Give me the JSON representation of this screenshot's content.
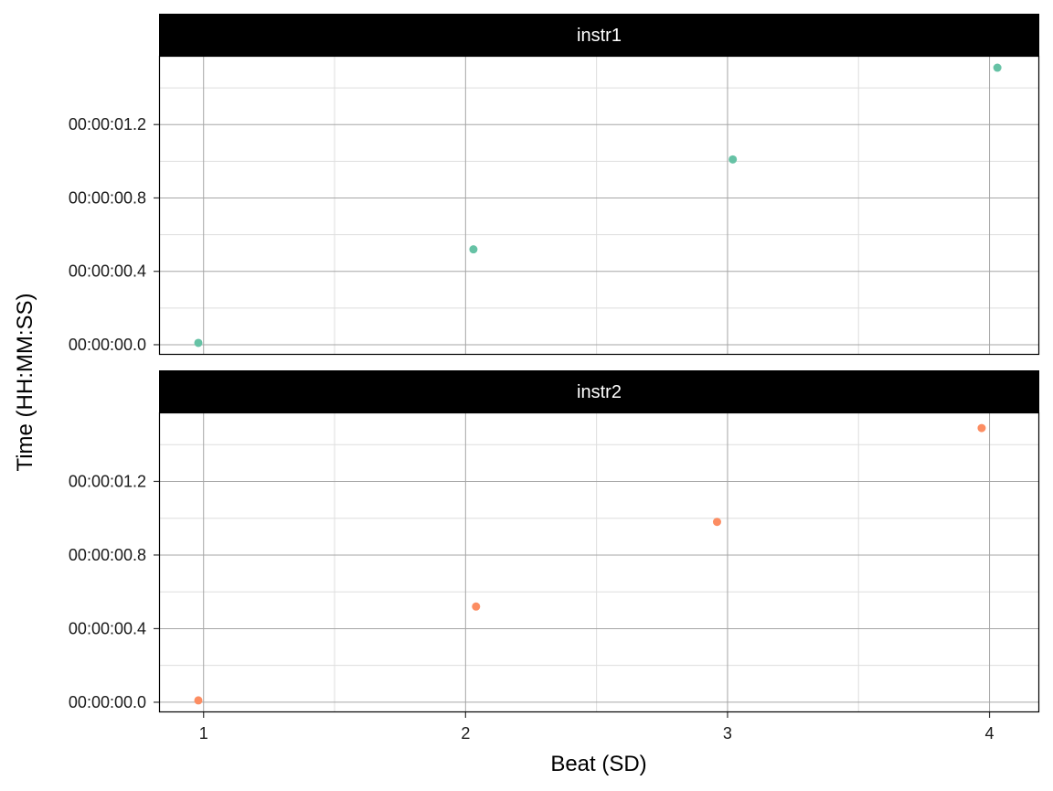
{
  "chart_data": {
    "type": "scatter",
    "xlabel": "Beat (SD)",
    "ylabel": "Time (HH:MM:SS)",
    "xlim": [
      0.83,
      4.19
    ],
    "ylim": [
      -0.055,
      1.575
    ],
    "x_ticks": [
      1,
      2,
      3,
      4
    ],
    "x_tick_labels": [
      "1",
      "2",
      "3",
      "4"
    ],
    "y_ticks": [
      0.0,
      0.4,
      0.8,
      1.2
    ],
    "y_tick_labels": [
      "00:00:00.0",
      "00:00:00.4",
      "00:00:00.8",
      "00:00:01.2"
    ],
    "y_minor_ticks": [
      0.2,
      0.6,
      1.0,
      1.4
    ],
    "x_minor_ticks": [
      1.5,
      2.5,
      3.5
    ],
    "grid": true,
    "legend": "none",
    "colors": {
      "strip_background": "#000000",
      "strip_text": "#ffffff",
      "major_grid": "#a6a6a6",
      "minor_grid": "#dedede",
      "panel_border": "#000000"
    },
    "panels": [
      {
        "name": "instr1",
        "color": "#66c2a5",
        "points": [
          {
            "x": 0.98,
            "y": 0.01
          },
          {
            "x": 2.03,
            "y": 0.52
          },
          {
            "x": 3.02,
            "y": 1.01
          },
          {
            "x": 4.03,
            "y": 1.51
          }
        ]
      },
      {
        "name": "instr2",
        "color": "#fc8d62",
        "points": [
          {
            "x": 0.98,
            "y": 0.01
          },
          {
            "x": 2.04,
            "y": 0.52
          },
          {
            "x": 2.96,
            "y": 0.98
          },
          {
            "x": 3.97,
            "y": 1.49
          }
        ]
      }
    ]
  }
}
